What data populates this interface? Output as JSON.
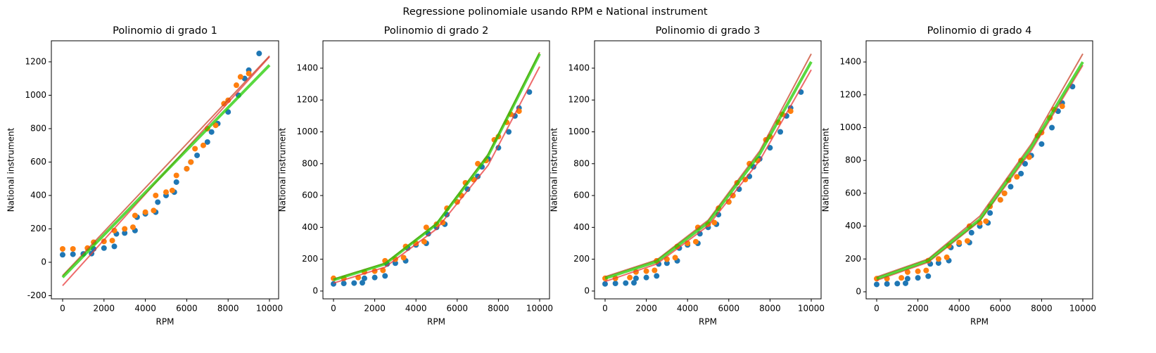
{
  "title": "Regressione polinomiale usando RPM e National instrument",
  "chart_data": [
    {
      "type": "line",
      "title": "Polinomio di grado 1",
      "x_label": "RPM",
      "y_label": "National instrument",
      "xlim": [
        -544,
        10442
      ],
      "ylim": [
        -219,
        1326
      ],
      "xticks": [
        0,
        2000,
        4000,
        6000,
        8000,
        10000
      ],
      "yticks": [
        -200,
        0,
        200,
        400,
        600,
        800,
        1000,
        1200
      ],
      "series": [
        {
          "kind": "scatter",
          "color": "#1f77b4",
          "x": [
            0,
            500,
            1000,
            1400,
            1500,
            2000,
            2500,
            2600,
            3000,
            3500,
            3600,
            4000,
            4500,
            4600,
            5000,
            5400,
            5500,
            6000,
            6200,
            6500,
            7000,
            7200,
            7500,
            8000,
            8500,
            8800,
            9000,
            9500
          ],
          "values": [
            45,
            48,
            50,
            52,
            80,
            85,
            95,
            170,
            175,
            190,
            270,
            290,
            300,
            360,
            400,
            420,
            480,
            560,
            600,
            640,
            720,
            780,
            830,
            900,
            1000,
            1100,
            1150,
            1250
          ]
        },
        {
          "kind": "scatter",
          "color": "#ff7f0e",
          "x": [
            0,
            500,
            1200,
            1500,
            2000,
            2400,
            2500,
            3000,
            3400,
            3500,
            4000,
            4400,
            4500,
            5000,
            5300,
            5500,
            6000,
            6200,
            6400,
            6800,
            7000,
            7400,
            7800,
            8000,
            8400,
            8600,
            9000
          ],
          "values": [
            80,
            80,
            85,
            120,
            125,
            130,
            190,
            200,
            210,
            280,
            300,
            310,
            400,
            420,
            430,
            520,
            560,
            600,
            680,
            700,
            800,
            820,
            950,
            970,
            1060,
            1110,
            1130
          ]
        },
        {
          "kind": "line",
          "color": "#e8393a",
          "x": [
            0,
            10000
          ],
          "values": [
            -140,
            1230
          ]
        },
        {
          "kind": "line",
          "color": "#c8442a",
          "x": [
            0,
            10000
          ],
          "values": [
            -80,
            1235
          ]
        },
        {
          "kind": "line",
          "color": "#22cc00",
          "x": [
            0,
            10000
          ],
          "values": [
            -90,
            1180
          ]
        }
      ]
    },
    {
      "type": "line",
      "title": "Polinomio di grado 2",
      "x_label": "RPM",
      "y_label": "National instrument",
      "xlim": [
        -512,
        10478
      ],
      "ylim": [
        -49,
        1572
      ],
      "xticks": [
        0,
        2000,
        4000,
        6000,
        8000,
        10000
      ],
      "yticks": [
        0,
        200,
        400,
        600,
        800,
        1000,
        1200,
        1400
      ],
      "series": [
        {
          "kind": "scatter",
          "color": "#1f77b4",
          "x": [
            0,
            500,
            1000,
            1400,
            1500,
            2000,
            2500,
            2600,
            3000,
            3500,
            3600,
            4000,
            4500,
            4600,
            5000,
            5400,
            5500,
            6000,
            6200,
            6500,
            7000,
            7200,
            7500,
            8000,
            8500,
            8800,
            9000,
            9500
          ],
          "values": [
            45,
            48,
            50,
            52,
            80,
            85,
            95,
            170,
            175,
            190,
            270,
            290,
            300,
            360,
            400,
            420,
            480,
            560,
            600,
            640,
            720,
            780,
            830,
            900,
            1000,
            1100,
            1150,
            1250
          ]
        },
        {
          "kind": "scatter",
          "color": "#ff7f0e",
          "x": [
            0,
            500,
            1200,
            1500,
            2000,
            2400,
            2500,
            3000,
            3400,
            3500,
            4000,
            4400,
            4500,
            5000,
            5300,
            5500,
            6000,
            6200,
            6400,
            6800,
            7000,
            7400,
            7800,
            8000,
            8400,
            8600,
            9000
          ],
          "values": [
            80,
            80,
            85,
            120,
            125,
            130,
            190,
            200,
            210,
            280,
            300,
            310,
            400,
            420,
            430,
            520,
            560,
            600,
            680,
            700,
            800,
            820,
            950,
            970,
            1060,
            1110,
            1130
          ]
        },
        {
          "kind": "line",
          "color": "#e8393a",
          "x": [
            0,
            2500,
            5000,
            7500,
            10000
          ],
          "values": [
            50,
            150,
            390,
            790,
            1410
          ]
        },
        {
          "kind": "line",
          "color": "#c8442a",
          "x": [
            0,
            2500,
            5000,
            7500,
            10000
          ],
          "values": [
            75,
            175,
            425,
            860,
            1500
          ]
        },
        {
          "kind": "line",
          "color": "#22cc00",
          "x": [
            0,
            2500,
            5000,
            7500,
            10000
          ],
          "values": [
            70,
            170,
            420,
            850,
            1490
          ]
        }
      ]
    },
    {
      "type": "line",
      "title": "Polinomio di grado 3",
      "x_label": "RPM",
      "y_label": "National instrument",
      "xlim": [
        -512,
        10478
      ],
      "ylim": [
        -49,
        1572
      ],
      "xticks": [
        0,
        2000,
        4000,
        6000,
        8000,
        10000
      ],
      "yticks": [
        0,
        200,
        400,
        600,
        800,
        1000,
        1200,
        1400
      ],
      "series": [
        {
          "kind": "scatter",
          "color": "#1f77b4",
          "x": [
            0,
            500,
            1000,
            1400,
            1500,
            2000,
            2500,
            2600,
            3000,
            3500,
            3600,
            4000,
            4500,
            4600,
            5000,
            5400,
            5500,
            6000,
            6200,
            6500,
            7000,
            7200,
            7500,
            8000,
            8500,
            8800,
            9000,
            9500
          ],
          "values": [
            45,
            48,
            50,
            52,
            80,
            85,
            95,
            170,
            175,
            190,
            270,
            290,
            300,
            360,
            400,
            420,
            480,
            560,
            600,
            640,
            720,
            780,
            830,
            900,
            1000,
            1100,
            1150,
            1250
          ]
        },
        {
          "kind": "scatter",
          "color": "#ff7f0e",
          "x": [
            0,
            500,
            1200,
            1500,
            2000,
            2400,
            2500,
            3000,
            3400,
            3500,
            4000,
            4400,
            4500,
            5000,
            5300,
            5500,
            6000,
            6200,
            6400,
            6800,
            7000,
            7400,
            7800,
            8000,
            8400,
            8600,
            9000
          ],
          "values": [
            80,
            80,
            85,
            120,
            125,
            130,
            190,
            200,
            210,
            280,
            300,
            310,
            400,
            420,
            430,
            520,
            560,
            600,
            680,
            700,
            800,
            820,
            950,
            970,
            1060,
            1110,
            1130
          ]
        },
        {
          "kind": "line",
          "color": "#e8393a",
          "x": [
            0,
            2500,
            5000,
            7500,
            10000
          ],
          "values": [
            60,
            170,
            410,
            820,
            1390
          ]
        },
        {
          "kind": "line",
          "color": "#c8442a",
          "x": [
            0,
            2500,
            5000,
            7500,
            10000
          ],
          "values": [
            90,
            195,
            445,
            880,
            1490
          ]
        },
        {
          "kind": "line",
          "color": "#22cc00",
          "x": [
            0,
            2500,
            5000,
            7500,
            10000
          ],
          "values": [
            80,
            185,
            430,
            860,
            1440
          ]
        }
      ]
    },
    {
      "type": "line",
      "title": "Polinomio di grado 4",
      "x_label": "RPM",
      "y_label": "National instrument",
      "xlim": [
        -512,
        10478
      ],
      "ylim": [
        -43,
        1529
      ],
      "xticks": [
        0,
        2000,
        4000,
        6000,
        8000,
        10000
      ],
      "yticks": [
        0,
        200,
        400,
        600,
        800,
        1000,
        1200,
        1400
      ],
      "series": [
        {
          "kind": "scatter",
          "color": "#1f77b4",
          "x": [
            0,
            500,
            1000,
            1400,
            1500,
            2000,
            2500,
            2600,
            3000,
            3500,
            3600,
            4000,
            4500,
            4600,
            5000,
            5400,
            5500,
            6000,
            6200,
            6500,
            7000,
            7200,
            7500,
            8000,
            8500,
            8800,
            9000,
            9500
          ],
          "values": [
            45,
            48,
            50,
            52,
            80,
            85,
            95,
            170,
            175,
            190,
            270,
            290,
            300,
            360,
            400,
            420,
            480,
            560,
            600,
            640,
            720,
            780,
            830,
            900,
            1000,
            1100,
            1150,
            1250
          ]
        },
        {
          "kind": "scatter",
          "color": "#ff7f0e",
          "x": [
            0,
            500,
            1200,
            1500,
            2000,
            2400,
            2500,
            3000,
            3400,
            3500,
            4000,
            4400,
            4500,
            5000,
            5300,
            5500,
            6000,
            6200,
            6400,
            6800,
            7000,
            7400,
            7800,
            8000,
            8400,
            8600,
            9000
          ],
          "values": [
            80,
            80,
            85,
            120,
            125,
            130,
            190,
            200,
            210,
            280,
            300,
            310,
            400,
            420,
            430,
            520,
            560,
            600,
            680,
            700,
            800,
            820,
            950,
            970,
            1060,
            1110,
            1130
          ]
        },
        {
          "kind": "line",
          "color": "#e8393a",
          "x": [
            0,
            2500,
            5000,
            7500,
            10000
          ],
          "values": [
            70,
            180,
            430,
            860,
            1380
          ]
        },
        {
          "kind": "line",
          "color": "#c8442a",
          "x": [
            0,
            2500,
            5000,
            7500,
            10000
          ],
          "values": [
            90,
            200,
            460,
            900,
            1450
          ]
        },
        {
          "kind": "line",
          "color": "#22cc00",
          "x": [
            0,
            2500,
            5000,
            7500,
            10000
          ],
          "values": [
            80,
            190,
            440,
            880,
            1400
          ]
        }
      ]
    }
  ]
}
